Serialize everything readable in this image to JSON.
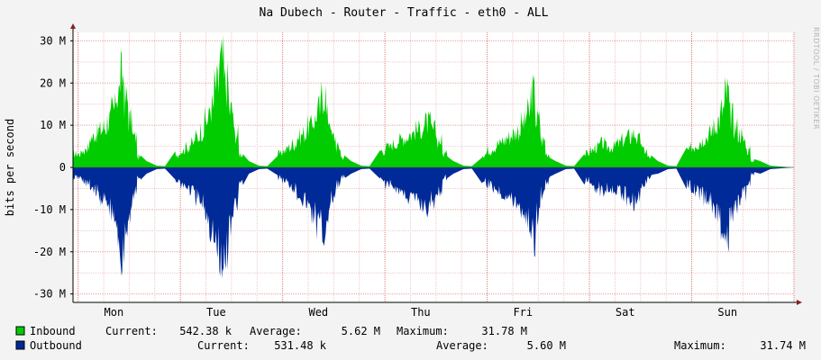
{
  "chart_data": {
    "type": "area",
    "title": "Na Dubech - Router - Traffic - eth0 - ALL",
    "ylabel": "bits per second",
    "watermark": "RRDTOOL / TOBI OETIKER",
    "ylim": [
      -32000000,
      32000000
    ],
    "y_ticks": [
      {
        "value": 30000000,
        "label": "30 M"
      },
      {
        "value": 20000000,
        "label": "20 M"
      },
      {
        "value": 10000000,
        "label": "10 M"
      },
      {
        "value": 0,
        "label": "0"
      },
      {
        "value": -10000000,
        "label": "-10 M"
      },
      {
        "value": -20000000,
        "label": "-20 M"
      },
      {
        "value": -30000000,
        "label": "-30 M"
      }
    ],
    "x_days": [
      "Mon",
      "Tue",
      "Wed",
      "Thu",
      "Fri",
      "Sat",
      "Sun"
    ],
    "grid": true,
    "legend_position": "bottom",
    "series": [
      {
        "name": "Inbound",
        "color": "#00cc00",
        "current": "542.38 k",
        "average": "5.62 M",
        "maximum": "31.78 M",
        "hourly_peaks": [
          [
            4,
            4,
            5,
            6,
            9,
            10,
            11,
            12,
            14,
            17,
            22,
            27,
            20,
            14,
            9,
            3
          ],
          [
            4,
            5,
            6,
            7,
            9,
            11,
            14,
            18,
            24,
            31,
            25,
            17,
            10,
            4
          ],
          [
            4,
            5,
            6,
            7,
            9,
            10,
            12,
            14,
            17,
            22,
            15,
            9,
            6,
            3
          ],
          [
            5,
            6,
            7,
            8,
            9,
            10,
            11,
            12,
            13,
            11,
            8,
            4
          ],
          [
            4,
            5,
            6,
            7,
            8,
            9,
            10,
            11,
            13,
            16,
            22,
            14,
            8,
            4
          ],
          [
            4,
            5,
            6,
            7,
            6,
            6,
            7,
            8,
            9,
            10,
            8,
            5,
            3
          ],
          [
            5,
            6,
            7,
            8,
            9,
            10,
            12,
            14,
            17,
            22,
            15,
            12,
            10,
            8,
            5,
            2
          ]
        ]
      },
      {
        "name": "Outbound",
        "color": "#002a97",
        "current": "531.48 k",
        "average": "5.60 M",
        "maximum": "31.74 M",
        "hourly_peaks": [
          [
            3,
            3,
            4,
            5,
            6,
            7,
            9,
            10,
            12,
            15,
            20,
            27,
            19,
            13,
            8,
            3
          ],
          [
            4,
            5,
            6,
            7,
            9,
            11,
            14,
            18,
            24,
            31,
            25,
            17,
            10,
            4
          ],
          [
            3,
            4,
            5,
            6,
            8,
            10,
            12,
            14,
            17,
            20,
            14,
            9,
            5,
            3
          ],
          [
            4,
            5,
            6,
            7,
            8,
            9,
            10,
            11,
            12,
            10,
            7,
            3
          ],
          [
            4,
            5,
            6,
            7,
            8,
            9,
            10,
            11,
            13,
            16,
            21,
            14,
            8,
            4
          ],
          [
            4,
            5,
            6,
            7,
            6,
            6,
            7,
            8,
            9,
            10,
            8,
            5,
            3
          ],
          [
            5,
            6,
            7,
            8,
            9,
            10,
            12,
            14,
            17,
            22,
            15,
            12,
            10,
            8,
            5,
            2
          ]
        ]
      }
    ]
  },
  "legend": {
    "current_label": "Current:",
    "average_label": "Average:",
    "maximum_label": "Maximum:"
  }
}
